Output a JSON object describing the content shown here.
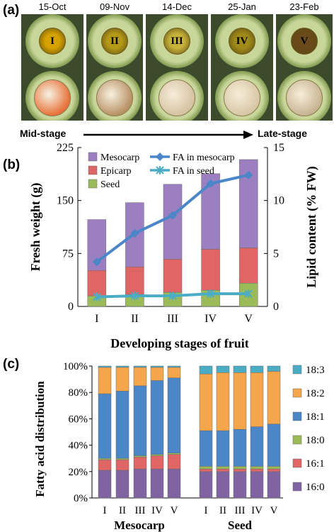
{
  "panel_a": {
    "label": "(a)",
    "dates": [
      "15-Oct",
      "09-Nov",
      "14-Dec",
      "25-Jan",
      "23-Feb"
    ],
    "stages": [
      "I",
      "II",
      "III",
      "IV",
      "V"
    ],
    "pit_colors": [
      "#d6a200",
      "#b59a18",
      "#c8b33a",
      "#a08a1a",
      "#6a4a1a"
    ],
    "bottom_colors": [
      "#e8713a",
      "#b89266",
      "#d6c2a2",
      "#d8c7a5",
      "#c8b492"
    ],
    "mid_label": "Mid-stage",
    "late_label": "Late-stage"
  },
  "chart_data": [
    {
      "type": "bar",
      "panel": "(b)",
      "categories": [
        "I",
        "II",
        "III",
        "IV",
        "V"
      ],
      "xlabel": "Developing stages of fruit",
      "ylabel": "Fresh weight (g)",
      "ylabel_right": "Lipid content (% FW)",
      "ylim": [
        0,
        225
      ],
      "yticks": [
        0,
        75,
        150,
        225
      ],
      "ylim_right": [
        0,
        15
      ],
      "yticks_right": [
        0,
        5,
        10,
        15
      ],
      "stacked": true,
      "series": [
        {
          "name": "Seed",
          "color": "#9bbb59",
          "values": [
            15,
            17,
            20,
            23,
            33
          ]
        },
        {
          "name": "Epicarp",
          "color": "#e06666",
          "values": [
            36,
            39,
            47,
            58,
            50
          ]
        },
        {
          "name": "Mesocarp",
          "color": "#9b7fc0",
          "values": [
            72,
            91,
            106,
            107,
            125
          ]
        }
      ],
      "lines": [
        {
          "name": "FA in mesocarp",
          "color": "#4a86c8",
          "marker": "diamond",
          "values": [
            4.2,
            6.9,
            8.6,
            11.6,
            12.4
          ]
        },
        {
          "name": "FA in seed",
          "color": "#4bacc6",
          "marker": "star",
          "values": [
            0.9,
            1.0,
            1.0,
            1.2,
            1.2
          ]
        }
      ],
      "legend_position": "top-left"
    },
    {
      "type": "bar",
      "panel": "(c)",
      "stacked": true,
      "ylabel": "Fatty acid distribution",
      "ylim": [
        0,
        100
      ],
      "yticks": [
        "0%",
        "20%",
        "40%",
        "60%",
        "80%",
        "100%"
      ],
      "groups": [
        {
          "name": "Mesocarp",
          "categories": [
            "I",
            "II",
            "III",
            "IV",
            "V"
          ]
        },
        {
          "name": "Seed",
          "categories": [
            "I",
            "II",
            "III",
            "IV",
            "V"
          ]
        }
      ],
      "series": [
        {
          "name": "16:0",
          "color": "#8064a2",
          "values": [
            21,
            21,
            22,
            22,
            22,
            20,
            20,
            20,
            20,
            20
          ]
        },
        {
          "name": "16:1",
          "color": "#e06666",
          "values": [
            8,
            8,
            9,
            10,
            11,
            2,
            2,
            2,
            2,
            2
          ]
        },
        {
          "name": "18:0",
          "color": "#9bbb59",
          "values": [
            1,
            1,
            1,
            1,
            1,
            2,
            2,
            2,
            2,
            2
          ]
        },
        {
          "name": "18:1",
          "color": "#4a86c8",
          "values": [
            49,
            51,
            53,
            56,
            57,
            27,
            27,
            28,
            30,
            32
          ]
        },
        {
          "name": "18:2",
          "color": "#f5a54a",
          "values": [
            20,
            18,
            14,
            10,
            8,
            43,
            44,
            43,
            41,
            40
          ]
        },
        {
          "name": "18:3",
          "color": "#4bacc6",
          "values": [
            1,
            1,
            1,
            1,
            1,
            6,
            5,
            5,
            5,
            4
          ]
        }
      ],
      "legend_position": "right"
    }
  ]
}
